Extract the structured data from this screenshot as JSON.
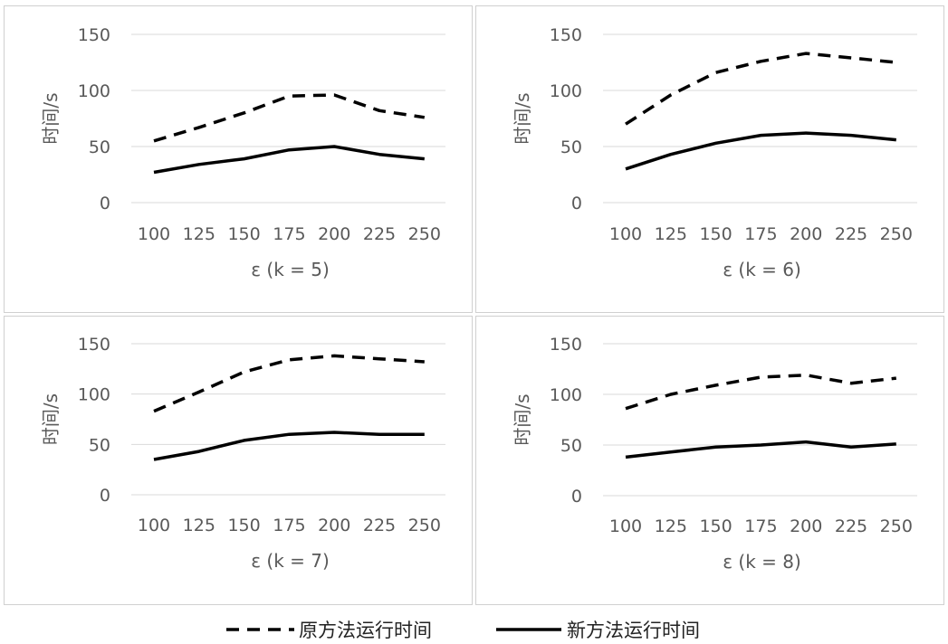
{
  "chart_data": [
    {
      "type": "line",
      "categories": [
        "100",
        "125",
        "150",
        "175",
        "200",
        "225",
        "250"
      ],
      "ylabel": "时间/s",
      "xlabel": "ε (k = 5)",
      "ylim": [
        0,
        150
      ],
      "yticks": [
        0,
        50,
        100,
        150
      ],
      "grid": true,
      "series": [
        {
          "name": "原方法运行时间",
          "style": "dashed",
          "values": [
            55,
            67,
            80,
            95,
            96,
            82,
            76
          ]
        },
        {
          "name": "新方法运行时间",
          "style": "solid",
          "values": [
            27,
            34,
            39,
            47,
            50,
            43,
            39
          ]
        }
      ]
    },
    {
      "type": "line",
      "categories": [
        "100",
        "125",
        "150",
        "175",
        "200",
        "225",
        "250"
      ],
      "ylabel": "时间/s",
      "xlabel": "ε (k = 6)",
      "ylim": [
        0,
        150
      ],
      "yticks": [
        0,
        50,
        100,
        150
      ],
      "grid": true,
      "series": [
        {
          "name": "原方法运行时间",
          "style": "dashed",
          "values": [
            70,
            96,
            116,
            126,
            133,
            129,
            125
          ]
        },
        {
          "name": "新方法运行时间",
          "style": "solid",
          "values": [
            30,
            43,
            53,
            60,
            62,
            60,
            56
          ]
        }
      ]
    },
    {
      "type": "line",
      "categories": [
        "100",
        "125",
        "150",
        "175",
        "200",
        "225",
        "250"
      ],
      "ylabel": "时间/s",
      "xlabel": "ε (k = 7)",
      "ylim": [
        0,
        150
      ],
      "yticks": [
        0,
        50,
        100,
        150
      ],
      "grid": true,
      "series": [
        {
          "name": "原方法运行时间",
          "style": "dashed",
          "values": [
            83,
            102,
            122,
            134,
            138,
            135,
            132
          ]
        },
        {
          "name": "新方法运行时间",
          "style": "solid",
          "values": [
            35,
            43,
            54,
            60,
            62,
            60,
            60
          ]
        }
      ]
    },
    {
      "type": "line",
      "categories": [
        "100",
        "125",
        "150",
        "175",
        "200",
        "225",
        "250"
      ],
      "ylabel": "时间/s",
      "xlabel": "ε (k = 8)",
      "ylim": [
        0,
        150
      ],
      "yticks": [
        0,
        50,
        100,
        150
      ],
      "grid": true,
      "series": [
        {
          "name": "原方法运行时间",
          "style": "dashed",
          "values": [
            86,
            100,
            109,
            117,
            119,
            111,
            116
          ]
        },
        {
          "name": "新方法运行时间",
          "style": "solid",
          "values": [
            38,
            43,
            48,
            50,
            53,
            48,
            51
          ]
        }
      ]
    }
  ],
  "legend": {
    "items": [
      {
        "label": "原方法运行时间",
        "style": "dashed"
      },
      {
        "label": "新方法运行时间",
        "style": "solid"
      }
    ],
    "position": "bottom"
  }
}
